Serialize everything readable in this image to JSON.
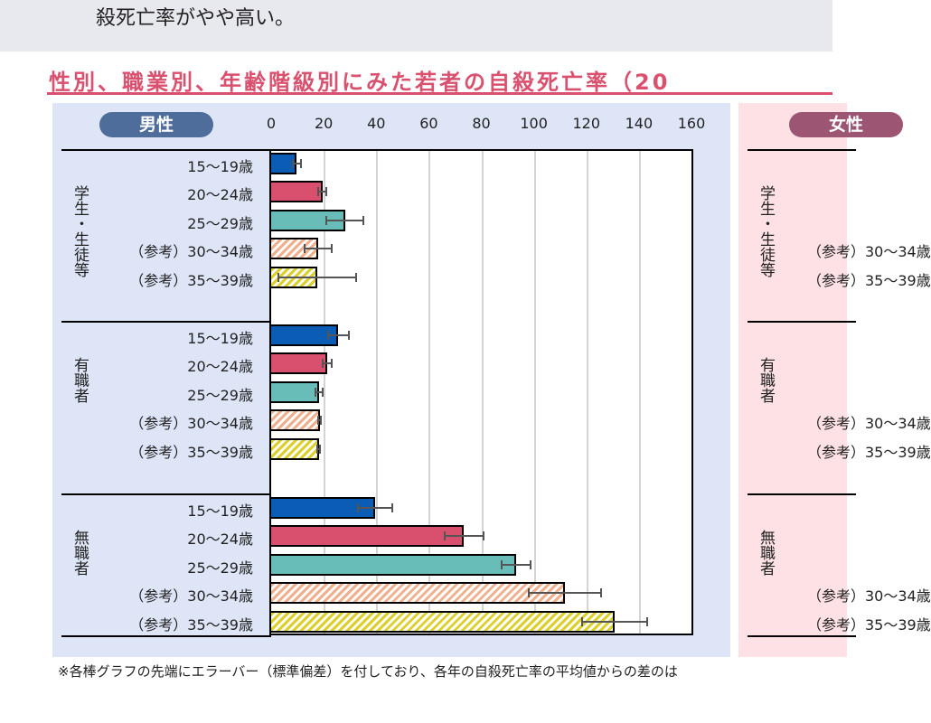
{
  "top_text": "殺死亡率がやや高い。",
  "title": "性別、職業別、年齢階級別にみた若者の自殺死亡率（20",
  "footnote": "※各棒グラフの先端にエラーバー（標準偏差）を付しており、各年の自殺死亡率の平均値からの差のは",
  "colors": {
    "15～19歳": "#0b5cb5",
    "20～24歳": "#d9506e",
    "25～29歳": "#68bdb8",
    "30～34歳": "#f0b08e",
    "35～39歳": "#dcd02c"
  },
  "chart_data": {
    "type": "bar",
    "orientation": "horizontal",
    "panels": [
      {
        "name": "男性",
        "xlim": [
          0,
          160
        ],
        "xticks": [
          "0",
          "20",
          "40",
          "60",
          "80",
          "100",
          "120",
          "140",
          "160"
        ],
        "grid": true,
        "groups": [
          {
            "name": "学生・生徒等",
            "categories": [
              "15～19歳",
              "20～24歳",
              "25～29歳",
              "（参考）30～34歳",
              "（参考）35～39歳"
            ],
            "values": [
              9.8,
              19.5,
              28.1,
              17.9,
              17.5
            ],
            "errors": [
              1.5,
              1.5,
              7.1,
              5.0,
              14.8
            ]
          },
          {
            "name": "有職者",
            "categories": [
              "15～19歳",
              "20～24歳",
              "25～29歳",
              "（参考）30～34歳",
              "（参考）35～39歳"
            ],
            "values": [
              25.6,
              21.3,
              18.2,
              18.5,
              18.1
            ],
            "errors": [
              4.0,
              1.7,
              1.4,
              0.5,
              0.5
            ]
          },
          {
            "name": "無職者",
            "categories": [
              "15～19歳",
              "20～24歳",
              "25～29歳",
              "（参考）30～34歳",
              "（参考）35～39歳"
            ],
            "values": [
              39.7,
              73.3,
              93.2,
              111.8,
              130.9
            ],
            "errors": [
              6.5,
              7.4,
              5.4,
              13.7,
              12.4
            ]
          }
        ]
      },
      {
        "name": "女性",
        "groups": [
          {
            "name": "学生・生徒等",
            "categories": [
              "（参考）30～34歳",
              "（参考）35～39歳"
            ]
          },
          {
            "name": "有職者",
            "categories": [
              "（参考）30～34歳",
              "（参考）35～39歳"
            ]
          },
          {
            "name": "無職者",
            "categories": [
              "（参考）30～34歳",
              "（参考）35～39歳"
            ]
          }
        ]
      }
    ]
  }
}
